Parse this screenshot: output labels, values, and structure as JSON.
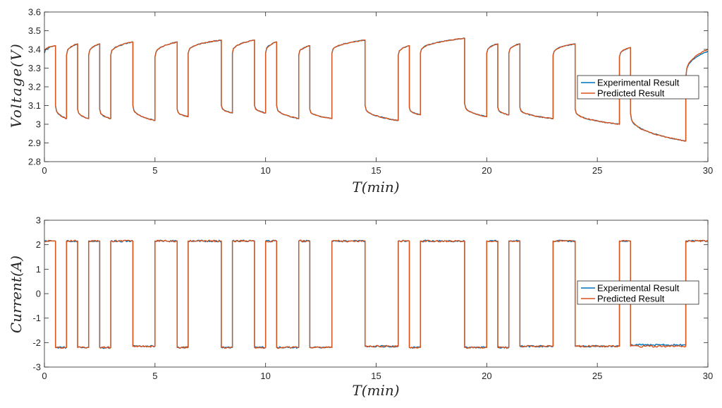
{
  "chart_data": [
    {
      "type": "line",
      "title": "",
      "xlabel": "T(min)",
      "ylabel": "Voltage(V)",
      "xlim": [
        0,
        30
      ],
      "ylim": [
        2.8,
        3.6
      ],
      "xticks": [
        "0",
        "5",
        "10",
        "15",
        "20",
        "25",
        "30"
      ],
      "yticks": [
        "2.8",
        "2.9",
        "3",
        "3.1",
        "3.2",
        "3.3",
        "3.4",
        "3.5",
        "3.6"
      ],
      "legend_position": "right-center",
      "series": [
        {
          "name": "Experimental Result",
          "color": "#0072BD",
          "x": [
            0,
            0.5,
            0.5,
            1.0,
            1.0,
            1.5,
            1.5,
            2.0,
            2.0,
            2.5,
            2.5,
            3.0,
            3.0,
            4.0,
            4.0,
            5.0,
            5.0,
            6.0,
            6.0,
            6.5,
            6.5,
            8.0,
            8.0,
            8.5,
            8.5,
            9.5,
            9.5,
            10.0,
            10.0,
            10.5,
            10.5,
            11.5,
            11.5,
            12.0,
            12.0,
            13.0,
            13.0,
            14.5,
            14.5,
            16.0,
            16.0,
            16.5,
            16.5,
            17.0,
            17.0,
            19.0,
            19.0,
            20.0,
            20.0,
            20.5,
            20.5,
            21.0,
            21.0,
            21.5,
            21.5,
            23.0,
            23.0,
            24.0,
            24.0,
            26.0,
            26.0,
            26.5,
            26.5,
            29.0,
            29.0,
            30.0
          ],
          "y": [
            3.38,
            3.42,
            3.1,
            3.03,
            3.37,
            3.43,
            3.08,
            3.03,
            3.37,
            3.43,
            3.08,
            3.03,
            3.37,
            3.44,
            3.1,
            3.02,
            3.36,
            3.44,
            3.08,
            3.04,
            3.38,
            3.45,
            3.1,
            3.06,
            3.38,
            3.45,
            3.1,
            3.06,
            3.38,
            3.44,
            3.1,
            3.03,
            3.37,
            3.42,
            3.08,
            3.03,
            3.38,
            3.45,
            3.1,
            3.02,
            3.37,
            3.42,
            3.09,
            3.05,
            3.38,
            3.46,
            3.11,
            3.04,
            3.38,
            3.43,
            3.09,
            3.05,
            3.38,
            3.43,
            3.09,
            3.03,
            3.37,
            3.43,
            3.08,
            3.0,
            3.36,
            3.41,
            3.06,
            2.91,
            3.25,
            3.39
          ]
        },
        {
          "name": "Predicted Result",
          "color": "#D95319",
          "x": [
            0,
            0.5,
            0.5,
            1.0,
            1.0,
            1.5,
            1.5,
            2.0,
            2.0,
            2.5,
            2.5,
            3.0,
            3.0,
            4.0,
            4.0,
            5.0,
            5.0,
            6.0,
            6.0,
            6.5,
            6.5,
            8.0,
            8.0,
            8.5,
            8.5,
            9.5,
            9.5,
            10.0,
            10.0,
            10.5,
            10.5,
            11.5,
            11.5,
            12.0,
            12.0,
            13.0,
            13.0,
            14.5,
            14.5,
            16.0,
            16.0,
            16.5,
            16.5,
            17.0,
            17.0,
            19.0,
            19.0,
            20.0,
            20.0,
            20.5,
            20.5,
            21.0,
            21.0,
            21.5,
            21.5,
            23.0,
            23.0,
            24.0,
            24.0,
            26.0,
            26.0,
            26.5,
            26.5,
            29.0,
            29.0,
            30.0
          ],
          "y": [
            3.39,
            3.42,
            3.1,
            3.03,
            3.37,
            3.43,
            3.08,
            3.03,
            3.37,
            3.43,
            3.08,
            3.03,
            3.37,
            3.44,
            3.1,
            3.02,
            3.36,
            3.44,
            3.08,
            3.04,
            3.38,
            3.45,
            3.1,
            3.06,
            3.38,
            3.45,
            3.1,
            3.06,
            3.38,
            3.44,
            3.1,
            3.03,
            3.37,
            3.42,
            3.08,
            3.03,
            3.38,
            3.45,
            3.1,
            3.02,
            3.37,
            3.42,
            3.09,
            3.05,
            3.38,
            3.46,
            3.11,
            3.04,
            3.38,
            3.43,
            3.09,
            3.05,
            3.38,
            3.43,
            3.09,
            3.03,
            3.37,
            3.43,
            3.08,
            3.0,
            3.36,
            3.41,
            3.06,
            2.91,
            3.25,
            3.4
          ]
        }
      ]
    },
    {
      "type": "line",
      "title": "",
      "xlabel": "T(min)",
      "ylabel": "Current(A)",
      "xlim": [
        0,
        30
      ],
      "ylim": [
        -3,
        3
      ],
      "xticks": [
        "0",
        "5",
        "10",
        "15",
        "20",
        "25",
        "30"
      ],
      "yticks": [
        "-3",
        "-2",
        "-1",
        "0",
        "1",
        "2",
        "3"
      ],
      "legend_position": "right-center",
      "series": [
        {
          "name": "Experimental Result",
          "color": "#0072BD",
          "x": [
            0,
            0.5,
            0.5,
            1.0,
            1.0,
            1.5,
            1.5,
            2.0,
            2.0,
            2.5,
            2.5,
            3.0,
            3.0,
            4.0,
            4.0,
            5.0,
            5.0,
            6.0,
            6.0,
            6.5,
            6.5,
            8.0,
            8.0,
            8.5,
            8.5,
            9.5,
            9.5,
            10.0,
            10.0,
            10.5,
            10.5,
            11.5,
            11.5,
            12.0,
            12.0,
            13.0,
            13.0,
            14.5,
            14.5,
            16.0,
            16.0,
            16.5,
            16.5,
            17.0,
            17.0,
            19.0,
            19.0,
            20.0,
            20.0,
            20.5,
            20.5,
            21.0,
            21.0,
            21.5,
            21.5,
            23.0,
            23.0,
            24.0,
            24.0,
            26.0,
            26.0,
            26.5,
            26.5,
            29.0,
            29.0,
            30.0
          ],
          "y": [
            2.15,
            2.15,
            -2.2,
            -2.2,
            2.15,
            2.15,
            -2.2,
            -2.2,
            2.15,
            2.15,
            -2.2,
            -2.2,
            2.15,
            2.15,
            -2.15,
            -2.15,
            2.15,
            2.15,
            -2.2,
            -2.2,
            2.15,
            2.15,
            -2.2,
            -2.2,
            2.15,
            2.15,
            -2.2,
            -2.2,
            2.15,
            2.15,
            -2.2,
            -2.2,
            2.15,
            2.15,
            -2.2,
            -2.2,
            2.15,
            2.15,
            -2.15,
            -2.15,
            2.15,
            2.15,
            -2.2,
            -2.2,
            2.15,
            2.15,
            -2.2,
            -2.2,
            2.15,
            2.15,
            -2.2,
            -2.2,
            2.15,
            2.15,
            -2.15,
            -2.15,
            2.15,
            2.15,
            -2.15,
            -2.15,
            2.15,
            2.15,
            -2.1,
            -2.1,
            2.15,
            2.15
          ]
        },
        {
          "name": "Predicted Result",
          "color": "#D95319",
          "x": [
            0,
            0.5,
            0.5,
            1.0,
            1.0,
            1.5,
            1.5,
            2.0,
            2.0,
            2.5,
            2.5,
            3.0,
            3.0,
            4.0,
            4.0,
            5.0,
            5.0,
            6.0,
            6.0,
            6.5,
            6.5,
            8.0,
            8.0,
            8.5,
            8.5,
            9.5,
            9.5,
            10.0,
            10.0,
            10.5,
            10.5,
            11.5,
            11.5,
            12.0,
            12.0,
            13.0,
            13.0,
            14.5,
            14.5,
            16.0,
            16.0,
            16.5,
            16.5,
            17.0,
            17.0,
            19.0,
            19.0,
            20.0,
            20.0,
            20.5,
            20.5,
            21.0,
            21.0,
            21.5,
            21.5,
            23.0,
            23.0,
            24.0,
            24.0,
            26.0,
            26.0,
            26.5,
            26.5,
            29.0,
            29.0,
            30.0
          ],
          "y": [
            2.15,
            2.15,
            -2.2,
            -2.2,
            2.15,
            2.15,
            -2.2,
            -2.2,
            2.15,
            2.15,
            -2.2,
            -2.2,
            2.15,
            2.15,
            -2.15,
            -2.15,
            2.15,
            2.15,
            -2.2,
            -2.2,
            2.15,
            2.15,
            -2.2,
            -2.2,
            2.15,
            2.15,
            -2.2,
            -2.2,
            2.15,
            2.15,
            -2.2,
            -2.2,
            2.15,
            2.15,
            -2.2,
            -2.2,
            2.15,
            2.15,
            -2.15,
            -2.15,
            2.15,
            2.15,
            -2.2,
            -2.2,
            2.15,
            2.15,
            -2.2,
            -2.2,
            2.15,
            2.15,
            -2.2,
            -2.2,
            2.15,
            2.15,
            -2.15,
            -2.15,
            2.15,
            2.15,
            -2.15,
            -2.15,
            2.15,
            2.15,
            -2.15,
            -2.15,
            2.15,
            2.15
          ]
        }
      ]
    }
  ]
}
